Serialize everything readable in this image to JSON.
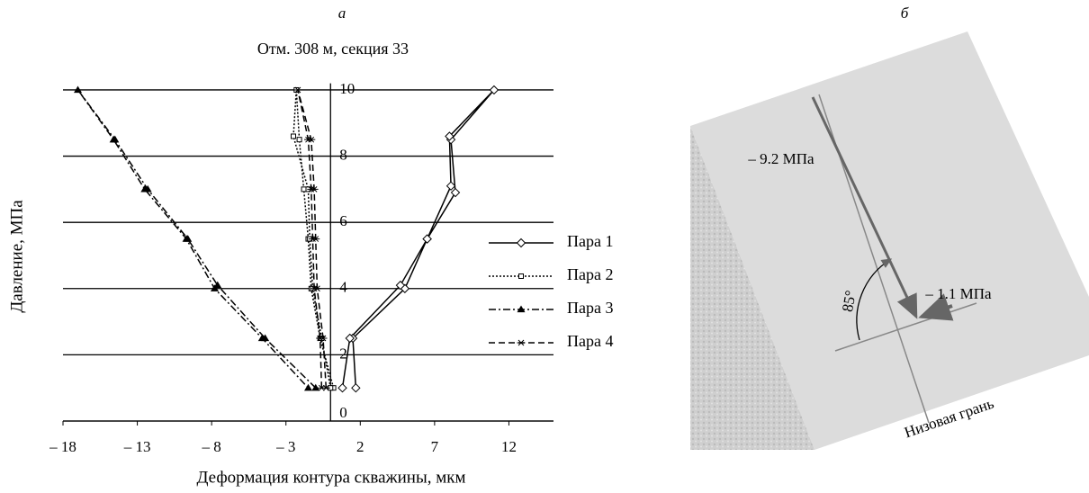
{
  "chart_data": {
    "type": "line",
    "panel_label": "а",
    "title": "Отм. 308 м, секция 33",
    "x_label": "Деформация контура скважины, мкм",
    "y_label": "Давление, МПа",
    "xlim": [
      -18,
      15
    ],
    "ylim": [
      0,
      10.2
    ],
    "xticks": [
      {
        "value": -18,
        "label": "– 18"
      },
      {
        "value": -13,
        "label": "– 13"
      },
      {
        "value": -8,
        "label": "– 8"
      },
      {
        "value": -3,
        "label": "– 3"
      },
      2,
      7,
      12
    ],
    "yticks": [
      0,
      2,
      4,
      6,
      8,
      10
    ],
    "grid": true,
    "legend": "right",
    "series": [
      {
        "name": "Пара 1",
        "color": "#000000",
        "marker": "diamond",
        "dash": "solid",
        "x": [
          1.7,
          1.5,
          5.0,
          6.5,
          8.4,
          8.1,
          11,
          8.0,
          8.1,
          6.5,
          4.7,
          1.3,
          0.8
        ],
        "values": [
          1,
          2.5,
          4,
          5.5,
          6.9,
          8.5,
          10,
          8.6,
          7.1,
          5.5,
          4.1,
          2.5,
          1
        ]
      },
      {
        "name": "Пара 2",
        "color": "#000000",
        "marker": "square",
        "dash": "dotted",
        "x": [
          0.2,
          -0.7,
          -1.3,
          -1.5,
          -1.8,
          -2.1,
          -2.3,
          -2.5,
          -1.5,
          -1.4,
          -1.2,
          -0.6,
          0
        ],
        "values": [
          1,
          2.5,
          4,
          5.5,
          7,
          8.5,
          10,
          8.6,
          7,
          5.5,
          4,
          2.5,
          1
        ]
      },
      {
        "name": "Пара 3",
        "color": "#000000",
        "marker": "triangle",
        "dash": "dashdot",
        "x": [
          -1,
          -4.4,
          -7.6,
          -9.6,
          -12.3,
          -14.5,
          -17,
          -14.6,
          -12.5,
          -9.7,
          -7.8,
          -4.6,
          -1.5
        ],
        "values": [
          1,
          2.5,
          4.1,
          5.5,
          7,
          8.5,
          10,
          8.5,
          7,
          5.5,
          4,
          2.5,
          1
        ]
      },
      {
        "name": "Пара 4",
        "color": "#000000",
        "marker": "asterisk",
        "dash": "dashed",
        "x": [
          -0.6,
          -0.7,
          -1.1,
          -1.2,
          -1.3,
          -1.5,
          -2.2,
          -1.3,
          -1.1,
          -1.0,
          -0.9,
          -0.5,
          -0.3
        ],
        "values": [
          1,
          2.5,
          4,
          5.5,
          7,
          8.5,
          10,
          8.5,
          7,
          5.5,
          4,
          2.5,
          1
        ]
      }
    ]
  },
  "diagram": {
    "panel_label": "б",
    "stress_main": "– 9.2 МПа",
    "stress_small": "– 1.1 МПа",
    "angle": "85°",
    "face_label": "Низовая грань"
  }
}
